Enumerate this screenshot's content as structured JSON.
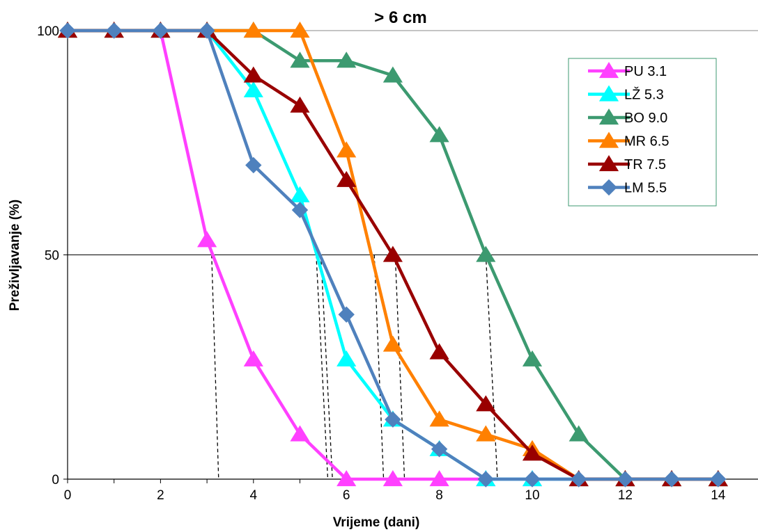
{
  "chart_data": {
    "type": "line",
    "title": "> 6 cm",
    "xlabel": "Vrijeme (dani)",
    "ylabel": "Preživljavanje (%)",
    "xlim": [
      0,
      14
    ],
    "ylim": [
      0,
      100
    ],
    "xticks": [
      0,
      2,
      4,
      6,
      8,
      10,
      12,
      14
    ],
    "yticks": [
      0,
      50,
      100
    ],
    "grid": "horizontal at 50 and 100",
    "legend_position": "top-right",
    "x": [
      0,
      1,
      2,
      3,
      4,
      5,
      6,
      7,
      8,
      9,
      10,
      11,
      12,
      13,
      14
    ],
    "series": [
      {
        "name": "PU 3.1",
        "color": "#FF40FF",
        "marker": "triangle",
        "values": [
          100,
          100,
          100,
          53.3,
          26.7,
          10,
          0,
          0,
          0,
          0,
          0,
          0,
          0,
          0,
          0
        ]
      },
      {
        "name": "LŽ 5.3",
        "color": "#00FFFF",
        "marker": "triangle",
        "values": [
          100,
          100,
          100,
          100,
          86.7,
          63.3,
          26.7,
          13.3,
          6.7,
          0,
          0,
          0,
          0,
          0,
          0
        ]
      },
      {
        "name": "BO 9.0",
        "color": "#3C9A70",
        "marker": "triangle",
        "values": [
          100,
          100,
          100,
          100,
          100,
          93.3,
          93.3,
          90,
          76.7,
          50,
          26.7,
          10,
          0,
          0,
          0
        ]
      },
      {
        "name": "MR 6.5",
        "color": "#FF8000",
        "marker": "triangle",
        "values": [
          100,
          100,
          100,
          100,
          100,
          100,
          73.3,
          30,
          13.3,
          10,
          6.7,
          0,
          0,
          0,
          0
        ]
      },
      {
        "name": "TR 7.5",
        "color": "#990000",
        "marker": "triangle",
        "values": [
          100,
          100,
          100,
          100,
          90,
          83.3,
          66.7,
          50,
          28.3,
          16.7,
          5.7,
          0,
          0,
          0,
          0
        ]
      },
      {
        "name": "LM 5.5",
        "color": "#4F81BD",
        "marker": "diamond",
        "values": [
          100,
          100,
          100,
          100,
          70,
          60,
          36.7,
          13.3,
          6.7,
          0,
          0,
          0,
          0,
          0,
          0
        ]
      }
    ],
    "annotations": {
      "type": "dashed drop lines from 50% survival point to x-axis",
      "lines": [
        {
          "x_top": 3.1,
          "x_bottom": 3.25
        },
        {
          "x_top": 5.35,
          "x_bottom": 5.6
        },
        {
          "x_top": 5.45,
          "x_bottom": 5.7
        },
        {
          "x_top": 6.6,
          "x_bottom": 6.8
        },
        {
          "x_top": 7.05,
          "x_bottom": 7.25
        },
        {
          "x_top": 9.0,
          "x_bottom": 9.25
        }
      ]
    }
  }
}
